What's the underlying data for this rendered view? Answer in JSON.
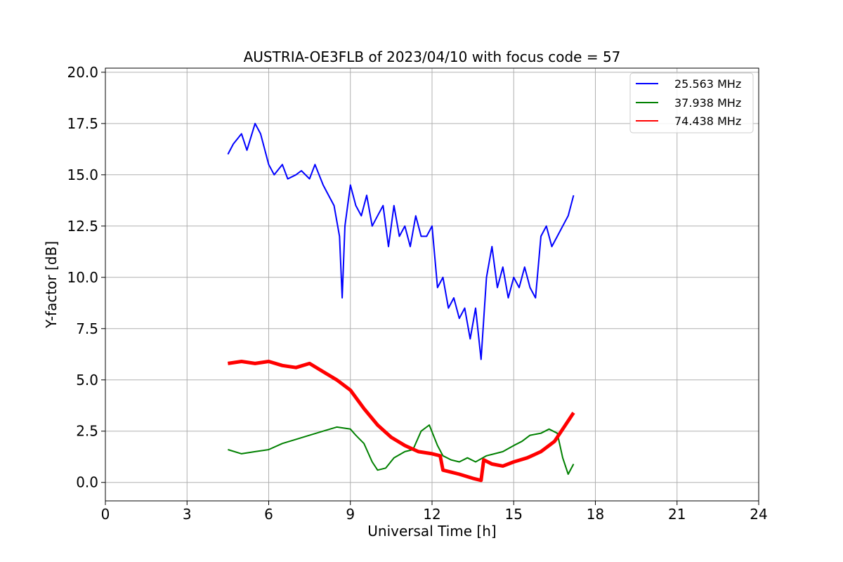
{
  "chart_data": {
    "type": "line",
    "title": "AUSTRIA-OE3FLB of 2023/04/10 with focus code = 57",
    "xlabel": "Universal Time [h]",
    "ylabel": "Y-factor [dB]",
    "xlim": [
      0,
      24
    ],
    "ylim": [
      -0.9,
      20.2
    ],
    "xticks": [
      0,
      3,
      6,
      9,
      12,
      15,
      18,
      21,
      24
    ],
    "xtick_labels": [
      "0",
      "3",
      "6",
      "9",
      "12",
      "15",
      "18",
      "21",
      "24"
    ],
    "yticks": [
      0.0,
      2.5,
      5.0,
      7.5,
      10.0,
      12.5,
      15.0,
      17.5,
      20.0
    ],
    "ytick_labels": [
      "0.0",
      "2.5",
      "5.0",
      "7.5",
      "10.0",
      "12.5",
      "15.0",
      "17.5",
      "20.0"
    ],
    "grid": true,
    "legend_position": "top-right",
    "series": [
      {
        "name": "25.563 MHz",
        "color": "#0000ff",
        "x": [
          4.5,
          4.7,
          5.0,
          5.2,
          5.5,
          5.7,
          6.0,
          6.2,
          6.5,
          6.7,
          7.0,
          7.2,
          7.5,
          7.7,
          8.0,
          8.2,
          8.4,
          8.6,
          8.7,
          8.8,
          9.0,
          9.2,
          9.4,
          9.6,
          9.8,
          10.0,
          10.2,
          10.4,
          10.6,
          10.8,
          11.0,
          11.2,
          11.4,
          11.6,
          11.8,
          12.0,
          12.2,
          12.4,
          12.6,
          12.8,
          13.0,
          13.2,
          13.4,
          13.6,
          13.8,
          14.0,
          14.2,
          14.4,
          14.6,
          14.8,
          15.0,
          15.2,
          15.4,
          15.6,
          15.8,
          16.0,
          16.2,
          16.4,
          16.6,
          16.8,
          17.0,
          17.2
        ],
        "y": [
          16.0,
          16.5,
          17.0,
          16.2,
          17.5,
          17.0,
          15.5,
          15.0,
          15.5,
          14.8,
          15.0,
          15.2,
          14.8,
          15.5,
          14.5,
          14.0,
          13.5,
          12.0,
          9.0,
          12.5,
          14.5,
          13.5,
          13.0,
          14.0,
          12.5,
          13.0,
          13.5,
          11.5,
          13.5,
          12.0,
          12.5,
          11.5,
          13.0,
          12.0,
          12.0,
          12.5,
          9.5,
          10.0,
          8.5,
          9.0,
          8.0,
          8.5,
          7.0,
          8.5,
          6.0,
          10.0,
          11.5,
          9.5,
          10.5,
          9.0,
          10.0,
          9.5,
          10.5,
          9.5,
          9.0,
          12.0,
          12.5,
          11.5,
          12.0,
          12.5,
          13.0,
          14.0
        ]
      },
      {
        "name": "37.938 MHz",
        "color": "#008000",
        "x": [
          4.5,
          5.0,
          5.5,
          6.0,
          6.5,
          7.0,
          7.5,
          8.0,
          8.5,
          9.0,
          9.2,
          9.5,
          9.8,
          10.0,
          10.3,
          10.6,
          11.0,
          11.3,
          11.6,
          11.9,
          12.2,
          12.4,
          12.7,
          13.0,
          13.3,
          13.6,
          14.0,
          14.3,
          14.6,
          15.0,
          15.3,
          15.6,
          16.0,
          16.3,
          16.6,
          16.8,
          17.0,
          17.2
        ],
        "y": [
          1.6,
          1.4,
          1.5,
          1.6,
          1.9,
          2.1,
          2.3,
          2.5,
          2.7,
          2.6,
          2.3,
          1.9,
          1.0,
          0.6,
          0.7,
          1.2,
          1.5,
          1.6,
          2.5,
          2.8,
          1.8,
          1.3,
          1.1,
          1.0,
          1.2,
          1.0,
          1.3,
          1.4,
          1.5,
          1.8,
          2.0,
          2.3,
          2.4,
          2.6,
          2.4,
          1.2,
          0.4,
          0.9
        ]
      },
      {
        "name": "74.438 MHz",
        "color": "#ff0000",
        "x": [
          4.5,
          5.0,
          5.5,
          6.0,
          6.5,
          7.0,
          7.5,
          8.0,
          8.5,
          9.0,
          9.5,
          10.0,
          10.5,
          11.0,
          11.5,
          12.0,
          12.3,
          12.4,
          12.7,
          13.0,
          13.5,
          13.8,
          13.9,
          14.2,
          14.6,
          15.0,
          15.5,
          16.0,
          16.5,
          17.0,
          17.2
        ],
        "y": [
          5.8,
          5.9,
          5.8,
          5.9,
          5.7,
          5.6,
          5.8,
          5.4,
          5.0,
          4.5,
          3.6,
          2.8,
          2.2,
          1.8,
          1.5,
          1.4,
          1.3,
          0.6,
          0.5,
          0.4,
          0.2,
          0.1,
          1.1,
          0.9,
          0.8,
          1.0,
          1.2,
          1.5,
          2.0,
          3.0,
          3.4
        ]
      }
    ]
  }
}
